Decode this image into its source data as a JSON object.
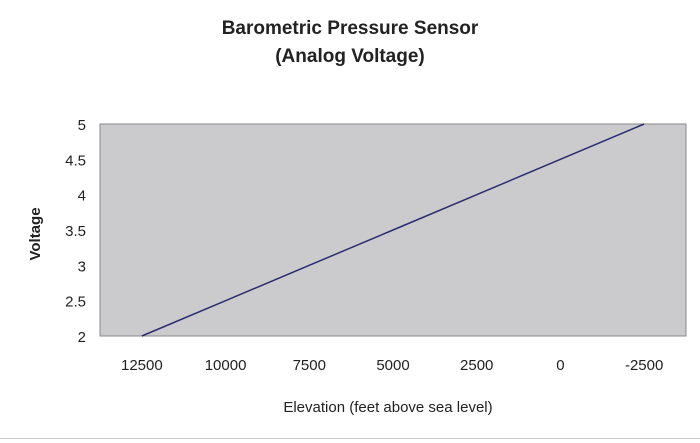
{
  "chart_data": {
    "type": "line",
    "title": "Barometric Pressure Sensor",
    "subtitle": "(Analog Voltage)",
    "xlabel": "Elevation (feet above sea level)",
    "ylabel": "Voltage",
    "categories": [
      "12500",
      "10000",
      "7500",
      "5000",
      "2500",
      "0",
      "-2500"
    ],
    "series": [
      {
        "values": [
          2,
          2.5,
          3,
          3.5,
          4,
          4.5,
          5
        ]
      }
    ],
    "ylim": [
      2,
      5
    ],
    "yticks": [
      "2",
      "2.5",
      "3",
      "3.5",
      "4",
      "4.5",
      "5"
    ],
    "grid": false,
    "legend": "none",
    "colors": {
      "plot_background": "#cbcbcd",
      "line": "#2c2c6e",
      "plot_border": "#8a8a8a"
    }
  }
}
